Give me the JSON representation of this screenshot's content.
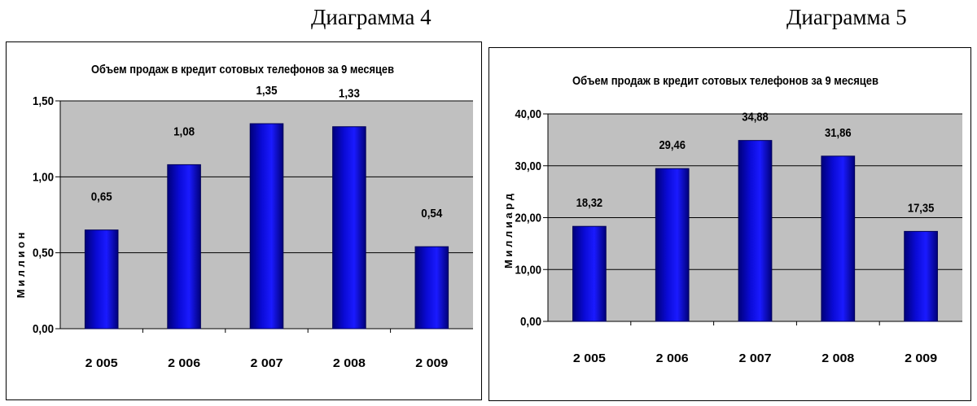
{
  "captions": [
    "Диаграмма 4",
    "Диаграмма 5"
  ],
  "chart_data": [
    {
      "type": "bar",
      "title": "Объем продаж в кредит сотовых телефонов за 9 месяцев",
      "ylabel": "М и л л и о н",
      "xlabel": "",
      "categories": [
        "2 005",
        "2 006",
        "2 007",
        "2 008",
        "2 009"
      ],
      "values": [
        0.65,
        1.08,
        1.35,
        1.33,
        0.54
      ],
      "value_labels": [
        "0,65",
        "1,08",
        "1,35",
        "1,33",
        "0,54"
      ],
      "ylim": [
        0,
        1.5
      ],
      "yticks": [
        0,
        0.5,
        1.0,
        1.5
      ],
      "ytick_labels": [
        "0,00",
        "0,50",
        "1,00",
        "1,50"
      ],
      "grid": true,
      "colors": {
        "bar": "#0a0ad6",
        "plot_bg": "#c0c0c0",
        "grid": "#000000"
      }
    },
    {
      "type": "bar",
      "title": "Объем продаж в кредит сотовых телефонов за 9 месяцев",
      "ylabel": "М и л л и а р д",
      "xlabel": "",
      "categories": [
        "2 005",
        "2 006",
        "2 007",
        "2 008",
        "2 009"
      ],
      "values": [
        18.32,
        29.46,
        34.88,
        31.86,
        17.35
      ],
      "value_labels": [
        "18,32",
        "29,46",
        "34,88",
        "31,86",
        "17,35"
      ],
      "ylim": [
        0,
        40
      ],
      "yticks": [
        0,
        10,
        20,
        30,
        40
      ],
      "ytick_labels": [
        "0,00",
        "10,00",
        "20,00",
        "30,00",
        "40,00"
      ],
      "grid": true,
      "colors": {
        "bar": "#0a0ad6",
        "plot_bg": "#c0c0c0",
        "grid": "#000000"
      }
    }
  ]
}
